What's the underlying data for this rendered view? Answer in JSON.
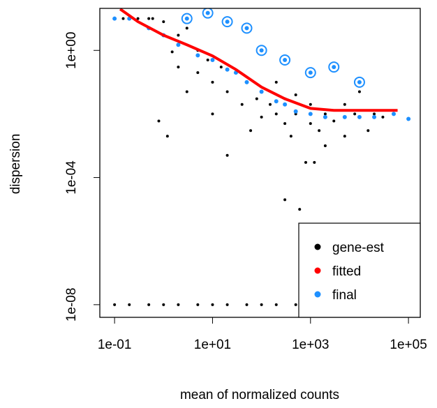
{
  "chart_data": {
    "type": "scatter",
    "xlabel": "mean of normalized counts",
    "ylabel": "dispersion",
    "log_x": true,
    "log_y": true,
    "xlim": [
      0.05,
      174000
    ],
    "ylim": [
      4e-09,
      21
    ],
    "xticks": [
      {
        "value": 0.1,
        "label": "1e-01"
      },
      {
        "value": 10,
        "label": "1e+01"
      },
      {
        "value": 1000,
        "label": "1e+03"
      },
      {
        "value": 100000,
        "label": "1e+05"
      }
    ],
    "yticks": [
      {
        "value": 1e-08,
        "label": "1e-08"
      },
      {
        "value": 0.0001,
        "label": "1e-04"
      },
      {
        "value": 1,
        "label": "1e+00"
      }
    ],
    "legend_position": "bottom-right",
    "series": [
      {
        "name": "gene-est",
        "color": "#000000",
        "mode": "points",
        "x": [
          0.15,
          0.3,
          0.6,
          0.5,
          1,
          2,
          3,
          1.5,
          0.8,
          1.2,
          2,
          3,
          5,
          5,
          8,
          10,
          10,
          15,
          20,
          20,
          30,
          40,
          50,
          60,
          80,
          100,
          100,
          150,
          200,
          200,
          300,
          300,
          400,
          500,
          500,
          800,
          1000,
          1000,
          1500,
          2000,
          2000,
          3000,
          5000,
          5000,
          8000,
          10000,
          15000,
          20000,
          30000,
          300,
          600,
          1200,
          0.1,
          0.2,
          0.5,
          1,
          2,
          5,
          10,
          20,
          50,
          100,
          200,
          500
        ],
        "values": [
          10,
          10,
          10,
          10,
          8,
          3,
          5,
          0.9,
          0.006,
          0.002,
          0.3,
          0.05,
          1,
          0.2,
          0.5,
          0.1,
          0.01,
          0.3,
          0.05,
          0.0005,
          0.2,
          0.02,
          0.1,
          0.003,
          0.03,
          0.05,
          0.008,
          0.02,
          0.01,
          0.1,
          0.005,
          0.03,
          0.002,
          0.01,
          0.04,
          0.0003,
          0.005,
          0.02,
          0.003,
          0.01,
          0.001,
          0.006,
          0.002,
          0.02,
          0.01,
          0.05,
          0.003,
          0.01,
          0.008,
          2e-05,
          1e-05,
          0.0003,
          1e-08,
          1e-08,
          1e-08,
          1e-08,
          1e-08,
          1e-08,
          1e-08,
          1e-08,
          1e-08,
          1e-08,
          1e-08,
          1e-08
        ]
      },
      {
        "name": "fitted",
        "color": "#ff0000",
        "mode": "line",
        "x": [
          0.13,
          0.3,
          1,
          3,
          10,
          30,
          100,
          300,
          1000,
          3000,
          10000,
          30000,
          60000
        ],
        "values": [
          20,
          8,
          3,
          1.5,
          0.67,
          0.25,
          0.07,
          0.03,
          0.015,
          0.013,
          0.013,
          0.013,
          0.013
        ]
      },
      {
        "name": "final",
        "color": "#1e90ff",
        "mode": "points",
        "x": [
          0.1,
          0.2,
          0.5,
          1,
          2,
          5,
          10,
          20,
          30,
          50,
          100,
          200,
          300,
          500,
          1000,
          2000,
          5000,
          10000,
          20000,
          50000,
          100000,
          3,
          8,
          20,
          50,
          100,
          300,
          1000,
          3000,
          10000
        ],
        "values": [
          10,
          10,
          5,
          3,
          1.5,
          0.7,
          0.5,
          0.25,
          0.2,
          0.1,
          0.05,
          0.025,
          0.02,
          0.012,
          0.01,
          0.008,
          0.008,
          0.008,
          0.008,
          0.01,
          0.007,
          10,
          15,
          8,
          5,
          1,
          0.5,
          0.2,
          0.3,
          0.1
        ]
      }
    ]
  }
}
